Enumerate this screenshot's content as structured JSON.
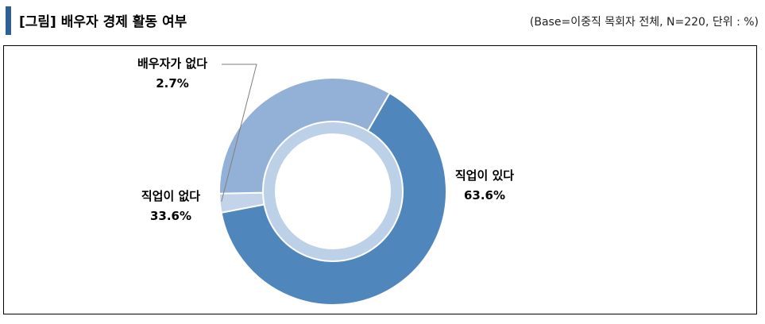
{
  "header": {
    "title": "[그림] 배우자 경제 활동 여부",
    "note": "(Base=이중직 목회자 전체, N=220, 단위 : %)"
  },
  "colors": {
    "header_bar": "#2E5F96",
    "slice_working": "#4F86BC",
    "slice_not_working": "#93B1D6",
    "slice_no_spouse": "#C2D3EA",
    "inner_ring": "#BCD0E8"
  },
  "chart_data": {
    "type": "pie",
    "donut": true,
    "title": "배우자 경제 활동 여부",
    "categories": [
      "직업이 있다",
      "배우자가 없다",
      "직업이 없다"
    ],
    "values": [
      63.6,
      2.7,
      33.6
    ],
    "value_labels": [
      "63.6%",
      "2.7%",
      "33.6%"
    ],
    "start": "12 o'clock",
    "direction": "clockwise"
  }
}
